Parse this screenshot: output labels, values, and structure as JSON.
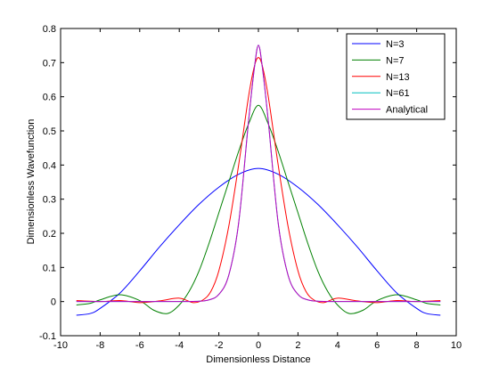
{
  "chart_data": {
    "type": "line",
    "title": "",
    "xlabel": "Dimensionless Distance",
    "ylabel": "Dimensionless Wavefunction",
    "xlim": [
      -10,
      10
    ],
    "ylim": [
      -0.1,
      0.8
    ],
    "xticks": [
      -10,
      -8,
      -6,
      -4,
      -2,
      0,
      2,
      4,
      6,
      8,
      10
    ],
    "yticks": [
      -0.1,
      0,
      0.1,
      0.2,
      0.3,
      0.4,
      0.5,
      0.6,
      0.7,
      0.8
    ],
    "grid": false,
    "legend_position": "top-right",
    "series": [
      {
        "name": "N=3",
        "color": "#0000ff",
        "x": [
          -9.2,
          -8.5,
          -8,
          -7,
          -6,
          -5,
          -4,
          -3,
          -2,
          -1,
          0,
          1,
          2,
          3,
          4,
          5,
          6,
          7,
          8,
          8.5,
          9.2
        ],
        "y": [
          -0.04,
          -0.035,
          -0.02,
          0.025,
          0.09,
          0.16,
          0.225,
          0.285,
          0.335,
          0.373,
          0.39,
          0.373,
          0.335,
          0.285,
          0.225,
          0.16,
          0.09,
          0.025,
          -0.02,
          -0.035,
          -0.04
        ]
      },
      {
        "name": "N=7",
        "color": "#008000",
        "x": [
          -9.2,
          -8.5,
          -8,
          -7,
          -6,
          -5.3,
          -4.6,
          -4,
          -3.5,
          -3,
          -2.5,
          -2,
          -1.5,
          -1,
          -0.5,
          0,
          0.5,
          1,
          1.5,
          2,
          2.5,
          3,
          3.5,
          4,
          4.6,
          5.3,
          6,
          7,
          8,
          8.5,
          9.2
        ],
        "y": [
          -0.01,
          -0.005,
          0.005,
          0.02,
          0.003,
          -0.025,
          -0.035,
          -0.01,
          0.03,
          0.09,
          0.17,
          0.26,
          0.35,
          0.44,
          0.52,
          0.575,
          0.52,
          0.44,
          0.35,
          0.26,
          0.17,
          0.09,
          0.03,
          -0.01,
          -0.035,
          -0.025,
          0.003,
          0.02,
          0.005,
          -0.005,
          -0.01
        ]
      },
      {
        "name": "N=13",
        "color": "#ff0000",
        "x": [
          -9.2,
          -8,
          -7,
          -6,
          -5,
          -4,
          -3.3,
          -2.8,
          -2.4,
          -2,
          -1.5,
          -1,
          -0.5,
          -0.2,
          0,
          0.2,
          0.5,
          1,
          1.5,
          2,
          2.4,
          2.8,
          3.3,
          4,
          5,
          6,
          7,
          8,
          9.2
        ],
        "y": [
          0.003,
          0,
          0.003,
          -0.003,
          0.002,
          0.01,
          -0.003,
          0.005,
          0.03,
          0.09,
          0.22,
          0.4,
          0.6,
          0.69,
          0.715,
          0.69,
          0.6,
          0.4,
          0.22,
          0.09,
          0.03,
          0.005,
          -0.003,
          0.01,
          0.002,
          -0.003,
          0.003,
          0,
          0.003
        ]
      },
      {
        "name": "N=61",
        "color": "#00bfbf",
        "x": [
          -9.2,
          -6,
          -4,
          -3,
          -2.5,
          -2,
          -1.5,
          -1,
          -0.5,
          -0.2,
          0,
          0.2,
          0.5,
          1,
          1.5,
          2,
          2.5,
          3,
          4,
          6,
          9.2
        ],
        "y": [
          0,
          0,
          0,
          0.001,
          0.005,
          0.021,
          0.077,
          0.23,
          0.528,
          0.686,
          0.751,
          0.686,
          0.528,
          0.23,
          0.077,
          0.021,
          0.005,
          0.001,
          0,
          0,
          0
        ]
      },
      {
        "name": "Analytical",
        "color": "#bf00bf",
        "x": [
          -9.2,
          -6,
          -4,
          -3,
          -2.5,
          -2,
          -1.5,
          -1,
          -0.5,
          -0.2,
          0,
          0.2,
          0.5,
          1,
          1.5,
          2,
          2.5,
          3,
          4,
          6,
          9.2
        ],
        "y": [
          0,
          0,
          0,
          0.001,
          0.005,
          0.021,
          0.077,
          0.23,
          0.528,
          0.686,
          0.751,
          0.686,
          0.528,
          0.23,
          0.077,
          0.021,
          0.005,
          0.001,
          0,
          0,
          0
        ]
      }
    ]
  }
}
